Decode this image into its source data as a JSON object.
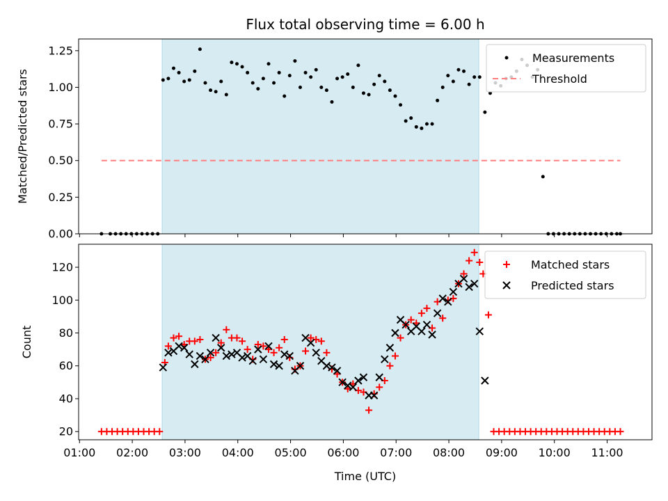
{
  "chart_data": [
    {
      "type": "scatter",
      "title": "Flux total observing time = 6.00 h",
      "xlabel": "",
      "ylabel": "Matched/Predicted stars",
      "ylim": [
        0.0,
        1.33
      ],
      "xlim": [
        "00:59",
        "11:51"
      ],
      "yticks": [
        "0.00",
        "0.25",
        "0.50",
        "0.75",
        "1.00",
        "1.25"
      ],
      "grid": false,
      "legend_position": "top-right",
      "observing_window": {
        "start": "02:34",
        "end": "08:34",
        "color": "#add8e6"
      },
      "threshold": {
        "name": "Threshold",
        "value": 0.5,
        "x_start": "01:25",
        "x_end": "11:15",
        "color": "#ff7f7f"
      },
      "series": [
        {
          "name": "Measurements",
          "color": "#000000",
          "x": [
            "01:25",
            "01:35",
            "01:41",
            "01:47",
            "01:53",
            "01:59",
            "02:05",
            "02:11",
            "02:17",
            "02:23",
            "02:29",
            "02:35",
            "02:41",
            "02:47",
            "02:53",
            "02:59",
            "03:05",
            "03:11",
            "03:17",
            "03:23",
            "03:29",
            "03:35",
            "03:41",
            "03:47",
            "03:53",
            "03:59",
            "04:05",
            "04:11",
            "04:17",
            "04:23",
            "04:29",
            "04:35",
            "04:41",
            "04:47",
            "04:53",
            "04:59",
            "05:05",
            "05:11",
            "05:17",
            "05:23",
            "05:29",
            "05:35",
            "05:41",
            "05:47",
            "05:53",
            "05:59",
            "06:05",
            "06:11",
            "06:17",
            "06:23",
            "06:29",
            "06:35",
            "06:41",
            "06:47",
            "06:53",
            "06:59",
            "07:05",
            "07:11",
            "07:17",
            "07:23",
            "07:29",
            "07:35",
            "07:41",
            "07:47",
            "07:53",
            "07:59",
            "08:05",
            "08:11",
            "08:17",
            "08:23",
            "08:29",
            "08:35",
            "08:41",
            "08:47",
            "08:53",
            "08:59",
            "09:05",
            "09:11",
            "09:17",
            "09:23",
            "09:29",
            "09:35",
            "09:41",
            "09:47",
            "09:53",
            "09:59",
            "10:05",
            "10:11",
            "10:17",
            "10:23",
            "10:29",
            "10:35",
            "10:41",
            "10:47",
            "10:53",
            "10:59",
            "11:05",
            "11:11",
            "11:15"
          ],
          "y": [
            0,
            0,
            0,
            0,
            0,
            0,
            0,
            0,
            0,
            0,
            0,
            1.05,
            1.06,
            1.13,
            1.1,
            1.04,
            1.05,
            1.11,
            1.26,
            1.03,
            0.98,
            0.97,
            1.04,
            0.95,
            1.17,
            1.16,
            1.14,
            1.1,
            1.03,
            0.99,
            1.06,
            1.16,
            1.03,
            1.1,
            0.94,
            1.08,
            1.18,
            1.0,
            1.1,
            1.07,
            1.12,
            1.0,
            0.98,
            0.9,
            1.06,
            1.07,
            1.09,
            1.0,
            1.15,
            0.96,
            0.95,
            1.02,
            1.08,
            1.04,
            0.98,
            0.94,
            0.88,
            0.77,
            0.79,
            0.73,
            0.72,
            0.75,
            0.75,
            0.91,
            1.0,
            1.08,
            1.04,
            1.12,
            1.11,
            1.02,
            1.07,
            1.07,
            0.83,
            0.96,
            1.03,
            1.01,
            1.06,
            1.07,
            1.11,
            1.19,
            1.15,
            1.07,
            1.12,
            0.39,
            0,
            0,
            0,
            0,
            0,
            0,
            0,
            0,
            0,
            0,
            0,
            0,
            0,
            0,
            0
          ]
        }
      ]
    },
    {
      "type": "scatter",
      "title": "",
      "xlabel": "Time (UTC)",
      "ylabel": "Count",
      "ylim": [
        15,
        134
      ],
      "xlim": [
        "00:59",
        "11:51"
      ],
      "xticks": [
        "01:00",
        "02:00",
        "03:00",
        "04:00",
        "05:00",
        "06:00",
        "07:00",
        "08:00",
        "09:00",
        "10:00",
        "11:00"
      ],
      "yticks": [
        "20",
        "40",
        "60",
        "80",
        "100",
        "120"
      ],
      "grid": false,
      "legend_position": "top-right",
      "observing_window": {
        "start": "02:34",
        "end": "08:34",
        "color": "#add8e6"
      },
      "series": [
        {
          "name": "Matched stars",
          "marker": "plus",
          "color": "#ff0000",
          "x": [
            "01:25",
            "01:31",
            "01:37",
            "01:43",
            "01:49",
            "01:55",
            "02:01",
            "02:07",
            "02:13",
            "02:19",
            "02:25",
            "02:31",
            "02:37",
            "02:41",
            "02:47",
            "02:53",
            "02:59",
            "03:05",
            "03:11",
            "03:17",
            "03:23",
            "03:29",
            "03:35",
            "03:41",
            "03:47",
            "03:53",
            "03:59",
            "04:05",
            "04:11",
            "04:17",
            "04:23",
            "04:29",
            "04:35",
            "04:41",
            "04:47",
            "04:53",
            "04:59",
            "05:05",
            "05:11",
            "05:17",
            "05:23",
            "05:29",
            "05:35",
            "05:41",
            "05:47",
            "05:53",
            "05:59",
            "06:05",
            "06:11",
            "06:17",
            "06:23",
            "06:29",
            "06:35",
            "06:41",
            "06:47",
            "06:53",
            "06:59",
            "07:05",
            "07:11",
            "07:17",
            "07:23",
            "07:29",
            "07:35",
            "07:41",
            "07:47",
            "07:53",
            "07:59",
            "08:05",
            "08:11",
            "08:17",
            "08:23",
            "08:29",
            "08:35",
            "08:39",
            "08:45",
            "08:51",
            "08:57",
            "09:03",
            "09:09",
            "09:15",
            "09:21",
            "09:27",
            "09:33",
            "09:39",
            "09:45",
            "09:51",
            "09:57",
            "10:03",
            "10:09",
            "10:15",
            "10:21",
            "10:27",
            "10:33",
            "10:39",
            "10:45",
            "10:51",
            "10:57",
            "11:03",
            "11:09",
            "11:15"
          ],
          "y": [
            20,
            20,
            20,
            20,
            20,
            20,
            20,
            20,
            20,
            20,
            20,
            20,
            62,
            72,
            77,
            78,
            73,
            75,
            75,
            76,
            64,
            65,
            68,
            74,
            82,
            77,
            77,
            75,
            70,
            64,
            73,
            72,
            70,
            68,
            71,
            76,
            65,
            58,
            60,
            69,
            77,
            76,
            75,
            68,
            58,
            55,
            50,
            46,
            49,
            45,
            44,
            33,
            43,
            47,
            51,
            60,
            66,
            77,
            85,
            88,
            86,
            92,
            95,
            83,
            99,
            89,
            100,
            101,
            110,
            116,
            124,
            129,
            123,
            116,
            91,
            20,
            20,
            20,
            20,
            20,
            20,
            20,
            20,
            20,
            20,
            20,
            20,
            20,
            20,
            20,
            20,
            20,
            20,
            20,
            20,
            20,
            20,
            20,
            20,
            20
          ]
        },
        {
          "name": "Predicted stars",
          "marker": "x",
          "color": "#000000",
          "x": [
            "02:35",
            "02:41",
            "02:47",
            "02:53",
            "02:59",
            "03:05",
            "03:11",
            "03:17",
            "03:23",
            "03:29",
            "03:35",
            "03:41",
            "03:47",
            "03:53",
            "03:59",
            "04:05",
            "04:11",
            "04:17",
            "04:23",
            "04:29",
            "04:35",
            "04:41",
            "04:47",
            "04:53",
            "04:59",
            "05:05",
            "05:11",
            "05:17",
            "05:23",
            "05:29",
            "05:35",
            "05:41",
            "05:47",
            "05:53",
            "05:59",
            "06:05",
            "06:11",
            "06:17",
            "06:23",
            "06:29",
            "06:35",
            "06:41",
            "06:47",
            "06:53",
            "06:59",
            "07:05",
            "07:11",
            "07:17",
            "07:23",
            "07:29",
            "07:35",
            "07:41",
            "07:47",
            "07:53",
            "07:59",
            "08:05",
            "08:11",
            "08:17",
            "08:23",
            "08:29",
            "08:35",
            "08:41"
          ],
          "y": [
            59,
            68,
            69,
            72,
            71,
            67,
            61,
            66,
            64,
            68,
            77,
            71,
            66,
            67,
            68,
            65,
            66,
            63,
            70,
            64,
            72,
            61,
            60,
            67,
            66,
            57,
            60,
            77,
            74,
            68,
            63,
            60,
            59,
            57,
            50,
            48,
            47,
            51,
            53,
            42,
            42,
            53,
            64,
            71,
            80,
            88,
            85,
            81,
            84,
            81,
            85,
            79,
            92,
            101,
            99,
            105,
            110,
            113,
            108,
            110,
            81,
            51
          ]
        }
      ]
    }
  ]
}
